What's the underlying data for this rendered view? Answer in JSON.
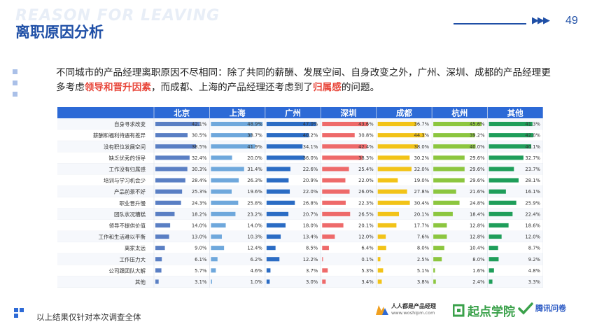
{
  "header": {
    "watermark": "REASON FOR LEAVING",
    "title": "离职原因分析",
    "page_number": "49"
  },
  "intro": {
    "part1": "不同城市的产品经理离职原因不尽相同：除了共同的薪酬、发展空间、自身改变之外，广州、深圳、成都的产品经理更多考虑",
    "highlight1": "领导和晋升因素",
    "part2": "，而成都、上海的产品经理还考虑到了",
    "highlight2": "归属感",
    "part3": "的问题。"
  },
  "chart_data": {
    "type": "bar",
    "orientation": "horizontal",
    "categories": [
      "自身寻求改变",
      "薪酬和福利待遇有差异",
      "没有职位发展空间",
      "缺乏优秀的领导",
      "工作没有归属感",
      "培训与学习机会少",
      "产品前景不好",
      "职业晋升慢",
      "团队状况糟糕",
      "领导不提供价值",
      "工作和生活难以平衡",
      "离家太远",
      "工作压力大",
      "公司跟团队大解",
      "其他"
    ],
    "series": [
      {
        "name": "北京",
        "color": "#5a7fc4",
        "values": [
          42.1,
          30.5,
          38.5,
          32.4,
          30.3,
          28.4,
          25.3,
          24.3,
          18.2,
          14.0,
          13.0,
          9.0,
          6.1,
          5.7,
          3.1
        ],
        "labels": [
          "42.1%",
          "30.5%",
          "38.5%",
          "32.4%",
          "30.3%",
          "28.4%",
          "25.3%",
          "24.3%",
          "18.2%",
          "14.0%",
          "13.0%",
          "9.0%",
          "6.1%",
          "5.7%",
          "3.1%"
        ]
      },
      {
        "name": "上海",
        "color": "#6fa8dc",
        "values": [
          48.9,
          38.7,
          41.9,
          20.0,
          31.4,
          26.3,
          19.6,
          25.8,
          23.2,
          14.0,
          10.3,
          12.4,
          6.2,
          4.6,
          1.0
        ],
        "labels": [
          "48.9%",
          "38.7%",
          "41.9%",
          "20.0%",
          "31.4%",
          "26.3%",
          "19.6%",
          "25.8%",
          "23.2%",
          "14.0%",
          "10.3%",
          "12.4%",
          "6.2%",
          "4.6%",
          "1.0%"
        ]
      },
      {
        "name": "广州",
        "color": "#2b6cc4",
        "values": [
          47.0,
          40.2,
          34.1,
          36.0,
          22.6,
          20.9,
          22.0,
          26.8,
          20.7,
          18.0,
          13.4,
          8.5,
          12.2,
          3.7,
          3.0
        ],
        "labels": [
          "47.0%",
          "40.2%",
          "34.1%",
          "36.0%",
          "22.6%",
          "20.9%",
          "22.0%",
          "26.8%",
          "20.7%",
          "18.0%",
          "13.4%",
          "8.5%",
          "12.2%",
          "3.7%",
          "3.0%"
        ]
      },
      {
        "name": "深圳",
        "color": "#ee6a6a",
        "values": [
          43.6,
          30.8,
          42.4,
          38.3,
          25.4,
          22.0,
          26.0,
          22.3,
          26.5,
          20.1,
          12.0,
          6.4,
          0.1,
          5.3,
          3.4
        ],
        "labels": [
          "43.6%",
          "30.8%",
          "42.4%",
          "38.3%",
          "25.4%",
          "22.0%",
          "26.0%",
          "22.3%",
          "26.5%",
          "20.1%",
          "12.0%",
          "6.4%",
          "0.1%",
          "5.3%",
          "3.4%"
        ]
      },
      {
        "name": "成都",
        "color": "#f2c318",
        "values": [
          36.7,
          44.3,
          38.0,
          30.2,
          32.0,
          19.0,
          27.8,
          30.4,
          20.1,
          17.7,
          7.6,
          8.0,
          2.5,
          5.1,
          3.8
        ],
        "labels": [
          "36.7%",
          "44.3%",
          "38.0%",
          "30.2%",
          "32.0%",
          "19.0%",
          "27.8%",
          "30.4%",
          "20.1%",
          "17.7%",
          "7.6%",
          "8.0%",
          "2.5%",
          "5.1%",
          "3.8%"
        ]
      },
      {
        "name": "杭州",
        "color": "#8cc63f",
        "values": [
          45.6,
          39.2,
          40.0,
          29.6,
          29.6,
          29.6,
          21.6,
          24.8,
          18.4,
          12.8,
          12.8,
          10.4,
          8.0,
          1.6,
          2.4
        ],
        "labels": [
          "45.6%",
          "39.2%",
          "40.0%",
          "29.6%",
          "29.6%",
          "29.6%",
          "21.6%",
          "24.8%",
          "18.4%",
          "12.8%",
          "12.8%",
          "10.4%",
          "8.0%",
          "1.6%",
          "2.4%"
        ]
      },
      {
        "name": "其他",
        "color": "#1f9e5a",
        "values": [
          41.3,
          42.0,
          40.1,
          32.7,
          23.7,
          28.1,
          16.1,
          25.9,
          22.4,
          18.6,
          12.0,
          8.7,
          9.2,
          4.8,
          3.3
        ],
        "labels": [
          "41.3%",
          "42.0%",
          "40.1%",
          "32.7%",
          "23.7%",
          "28.1%",
          "16.1%",
          "25.9%",
          "22.4%",
          "18.6%",
          "12.0%",
          "8.7%",
          "9.2%",
          "4.8%",
          "3.3%"
        ]
      }
    ],
    "header_color": "#2d6ad6"
  },
  "footer": {
    "note": "以上结果仅针对本次调查全体",
    "logo1_name": "人人都是产品经理",
    "logo1_url": "www.woshipm.com",
    "logo2_name": "起点学院",
    "logo3_name": "腾讯问卷"
  }
}
